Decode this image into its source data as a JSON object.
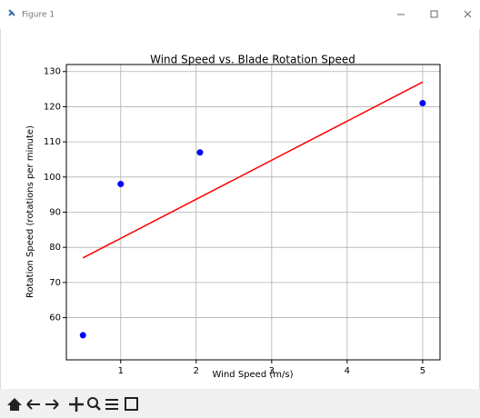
{
  "window": {
    "title": "Figure 1"
  },
  "chart_data": {
    "type": "scatter",
    "title": "Wind Speed vs. Blade Rotation Speed",
    "xlabel": "Wind Speed (m/s)",
    "ylabel": "Rotation Speed (rotations per minute)",
    "series": [
      {
        "kind": "scatter",
        "color": "#0000ff",
        "x": [
          0.5,
          1,
          2.05,
          5
        ],
        "values": [
          55,
          98,
          107,
          121
        ]
      },
      {
        "kind": "line",
        "color": "#ff0000",
        "x": [
          0.5,
          5
        ],
        "values": [
          77,
          127
        ]
      }
    ],
    "xlim": [
      0.28,
      5.23
    ],
    "ylim": [
      48,
      132
    ],
    "xticks": [
      1,
      2,
      3,
      4,
      5
    ],
    "yticks": [
      60,
      70,
      80,
      90,
      100,
      110,
      120,
      130
    ],
    "grid": true
  }
}
